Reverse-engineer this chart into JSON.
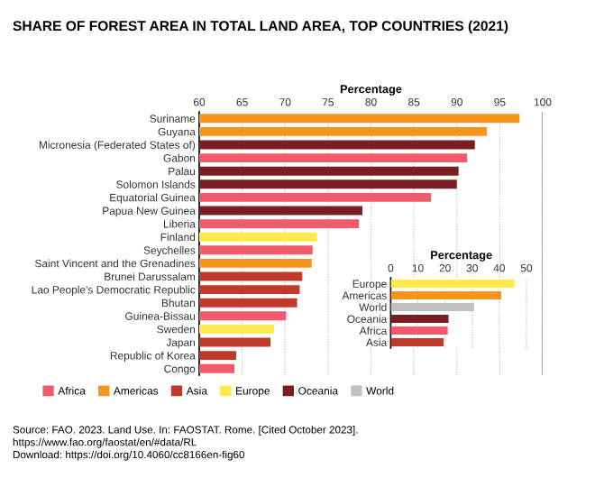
{
  "chart_data": [
    {
      "type": "bar",
      "orientation": "horizontal",
      "title": "SHARE OF FOREST AREA IN TOTAL LAND AREA, TOP COUNTRIES (2021)",
      "xlabel": "Percentage",
      "categories": [
        "Suriname",
        "Guyana",
        "Micronesia (Federated States of)",
        "Gabon",
        "Palau",
        "Solomon Islands",
        "Equatorial Guinea",
        "Papua New Guinea",
        "Liberia",
        "Finland",
        "Seychelles",
        "Saint Vincent and the Grenadines",
        "Brunei Darussalam",
        "Lao People's Democratic Republic",
        "Bhutan",
        "Guinea-Bissau",
        "Sweden",
        "Japan",
        "Republic of Korea",
        "Congo"
      ],
      "series": [
        {
          "name": "Africa",
          "color": "#f05a6a",
          "values": [
            null,
            null,
            null,
            91.2,
            null,
            null,
            87.0,
            null,
            78.6,
            null,
            73.2,
            null,
            null,
            null,
            null,
            70.1,
            null,
            null,
            null,
            64.1
          ]
        },
        {
          "name": "Americas",
          "color": "#f7941d",
          "values": [
            97.3,
            93.5,
            null,
            null,
            null,
            null,
            null,
            null,
            null,
            null,
            null,
            73.1,
            null,
            null,
            null,
            null,
            null,
            null,
            null,
            null
          ]
        },
        {
          "name": "Asia",
          "color": "#c1392b",
          "values": [
            null,
            null,
            null,
            null,
            null,
            null,
            null,
            null,
            null,
            null,
            null,
            null,
            72.0,
            71.7,
            71.4,
            null,
            null,
            68.3,
            64.3,
            null
          ]
        },
        {
          "name": "Europe",
          "color": "#ffe94d",
          "values": [
            null,
            null,
            null,
            null,
            null,
            null,
            null,
            null,
            null,
            73.7,
            null,
            null,
            null,
            null,
            null,
            null,
            68.7,
            null,
            null,
            null
          ]
        },
        {
          "name": "Oceania",
          "color": "#7b1e22",
          "values": [
            null,
            null,
            92.1,
            null,
            90.2,
            90.0,
            null,
            79.0,
            null,
            null,
            null,
            null,
            null,
            null,
            null,
            null,
            null,
            null,
            null,
            null
          ]
        },
        {
          "name": "World",
          "color": "#c0c0c0",
          "values": [
            null,
            null,
            null,
            null,
            null,
            null,
            null,
            null,
            null,
            null,
            null,
            null,
            null,
            null,
            null,
            null,
            null,
            null,
            null,
            null
          ]
        }
      ],
      "xlim": [
        60,
        100
      ],
      "xticks": [
        60,
        65,
        70,
        75,
        80,
        85,
        90,
        95,
        100
      ],
      "grid": "x",
      "legend": "bottom",
      "annotations": [
        "Source: FAO. 2023. Land Use. In: FAOSTAT. Rome. [Cited October 2023].\nhttps://www.fao.org/faostat/en/#data/RL\nDownload: https://doi.org/10.4060/cc8166en-fig60"
      ]
    },
    {
      "type": "bar",
      "orientation": "horizontal",
      "xlabel": "Percentage",
      "categories": [
        "Europe",
        "Americas",
        "World",
        "Oceania",
        "Africa",
        "Asia"
      ],
      "values": [
        45.6,
        40.7,
        30.7,
        21.3,
        21.0,
        19.5
      ],
      "colors": [
        "#ffe94d",
        "#f7941d",
        "#c0c0c0",
        "#7b1e22",
        "#f05a6a",
        "#c1392b"
      ],
      "xlim": [
        0,
        52
      ],
      "xticks": [
        0,
        10,
        20,
        30,
        40,
        50
      ],
      "grid": "x"
    }
  ]
}
